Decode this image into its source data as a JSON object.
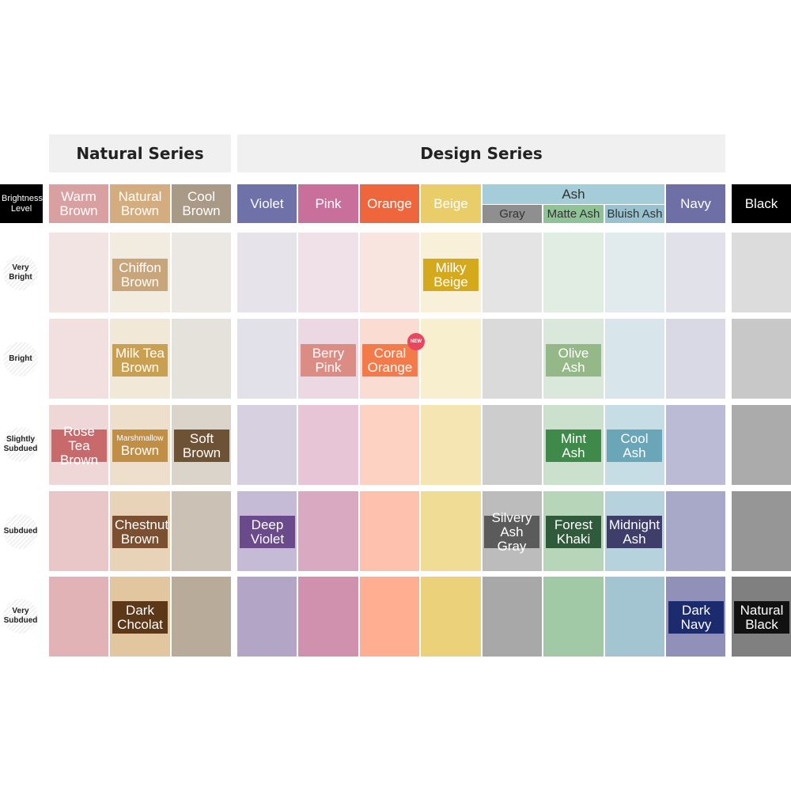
{
  "series": {
    "natural": "Natural Series",
    "design": "Design Series"
  },
  "brightness_header": "Brightness Level",
  "columns": {
    "warm_brown": "Warm Brown",
    "natural_brown": "Natural Brown",
    "cool_brown": "Cool Brown",
    "violet": "Violet",
    "pink": "Pink",
    "orange": "Orange",
    "beige": "Beige",
    "ash": "Ash",
    "gray": "Gray",
    "matte_ash": "Matte Ash",
    "bluish_ash": "Bluish Ash",
    "navy": "Navy",
    "black": "Black"
  },
  "rows": [
    "Very Bright",
    "Bright",
    "Slightly Subdued",
    "Subdued",
    "Very Subdued"
  ],
  "shades": {
    "chiffon_brown": "Chiffon Brown",
    "milky_beige": "Milky Beige",
    "milk_tea_brown": "Milk Tea Brown",
    "berry_pink": "Berry Pink",
    "coral_orange": "Coral Orange",
    "olive_ash": "Olive Ash",
    "rose_tea_brown": "Rose Tea Brown",
    "marshmallow_brown_1": "Marshmallow",
    "marshmallow_brown_2": "Brown",
    "soft_brown": "Soft Brown",
    "mint_ash": "Mint Ash",
    "cool_ash": "Cool Ash",
    "deep_violet": "Deep Violet",
    "chestnut_brown": "Chestnut Brown",
    "silvery_ash_gray": "Silvery Ash Gray",
    "forest_khaki": "Forest Khaki",
    "midnight_ash": "Midnight Ash",
    "dark_chcolat": "Dark Chcolat",
    "dark_navy": "Dark Navy",
    "natural_black": "Natural Black"
  },
  "new_badge": "NEW",
  "colors": {
    "warm_brown": "#d9a0a2",
    "natural_brown": "#d3ad80",
    "cool_brown": "#a99a87",
    "violet": "#6f72a8",
    "pink": "#c96f9c",
    "orange": "#f0663c",
    "beige": "#e9cd68",
    "ash": "#a5ccd9",
    "gray": "#8f8f8f",
    "matte_ash": "#90c298",
    "bluish_ash": "#98c2cf",
    "navy": "#6e6fa5",
    "black": "#000000"
  }
}
